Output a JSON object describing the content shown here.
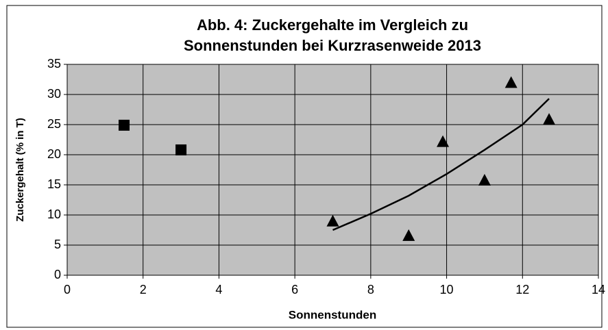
{
  "chart_data": {
    "type": "scatter",
    "title": [
      "Abb. 4: Zuckergehalte im Vergleich zu",
      "Sonnenstunden bei Kurzrasenweide 2013"
    ],
    "x_label": "Sonnenstunden",
    "y_label": "Zuckergehalt (% in T)",
    "xlim": [
      0,
      14
    ],
    "xticks": [
      0,
      2,
      4,
      6,
      8,
      10,
      12,
      14
    ],
    "ylim": [
      0,
      35
    ],
    "yticks": [
      0,
      5,
      10,
      15,
      20,
      25,
      30,
      35
    ],
    "grid": true,
    "plot_background": "#c0c0c0",
    "series": [
      {
        "marker": "square",
        "color": "#000000",
        "x": [
          1.5,
          3
        ],
        "values": [
          24.9,
          20.8
        ]
      },
      {
        "marker": "triangle",
        "color": "#000000",
        "x": [
          7,
          9,
          9.9,
          11,
          11.7,
          12.7
        ],
        "values": [
          9,
          6.6,
          22.2,
          15.8,
          32,
          25.9
        ]
      },
      {
        "marker": "line",
        "color": "#000000",
        "x": [
          7,
          8,
          9,
          10,
          11,
          12,
          12.7
        ],
        "values": [
          7.5,
          10.2,
          13.2,
          16.8,
          20.8,
          25,
          29.3
        ]
      }
    ]
  }
}
